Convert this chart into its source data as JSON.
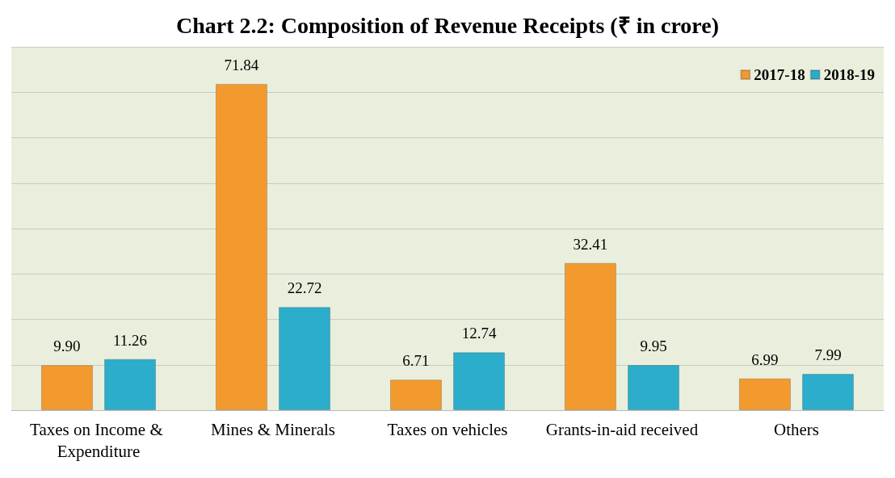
{
  "chart_data": {
    "type": "bar",
    "title": "Chart 2.2: Composition of Revenue Receipts (₹ in crore)",
    "categories": [
      "Taxes on Income & Expenditure",
      "Mines & Minerals",
      "Taxes on vehicles",
      "Grants-in-aid received",
      "Others"
    ],
    "series": [
      {
        "name": "2017-18",
        "color": "#f39a2e",
        "values": [
          9.9,
          71.84,
          6.71,
          32.41,
          6.99
        ],
        "value_labels": [
          "9.90",
          "71.84",
          "6.71",
          "32.41",
          "6.99"
        ]
      },
      {
        "name": "2018-19",
        "color": "#2badcb",
        "values": [
          11.26,
          22.72,
          12.74,
          9.95,
          7.99
        ],
        "value_labels": [
          "11.26",
          "22.72",
          "12.74",
          "9.95",
          "7.99"
        ]
      }
    ],
    "ylim": [
      0,
      80
    ],
    "yticks": [
      {
        "value": 0,
        "label": null
      },
      {
        "value": 10,
        "label": null
      },
      {
        "value": 20,
        "label": null
      },
      {
        "value": 30,
        "label": null
      },
      {
        "value": 40,
        "label": null
      },
      {
        "value": 50,
        "label": null
      },
      {
        "value": 60,
        "label": null
      },
      {
        "value": 70,
        "label": null
      },
      {
        "value": 80,
        "label": null
      }
    ],
    "grid": "y",
    "legend": "top right",
    "tick_labels": "x"
  }
}
